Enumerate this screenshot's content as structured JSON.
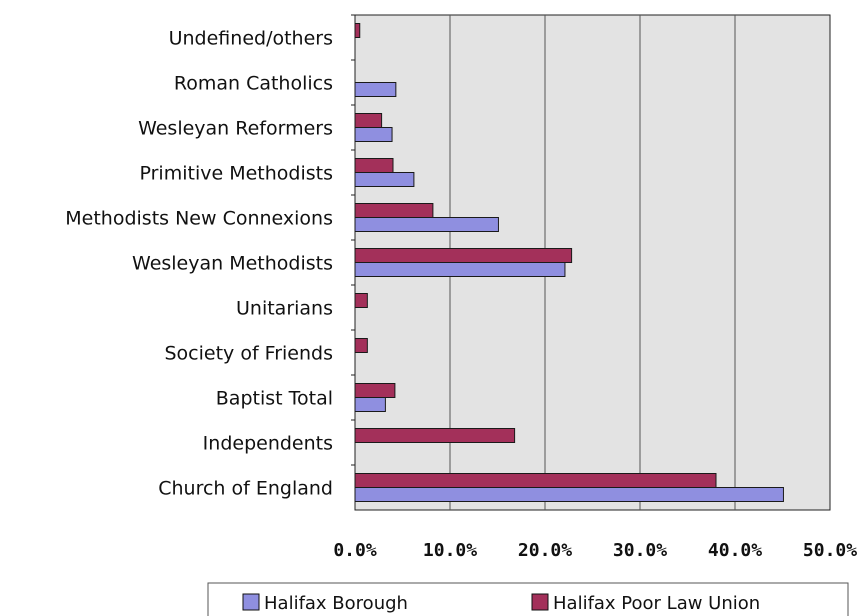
{
  "chart_data": {
    "type": "bar",
    "orientation": "horizontal",
    "categories": [
      "Undefined/others",
      "Roman Catholics",
      "Wesleyan Reformers",
      "Primitive Methodists",
      "Methodists New Connexions",
      "Wesleyan Methodists",
      "Unitarians",
      "Society of Friends",
      "Baptist Total",
      "Independents",
      "Church of England"
    ],
    "series": [
      {
        "name": "Halifax Borough",
        "color": "#8F8FE0",
        "values": [
          0,
          4.3,
          3.9,
          6.2,
          15.1,
          22.1,
          0,
          0,
          3.2,
          0,
          45.1
        ]
      },
      {
        "name": "Halifax Poor Law Union",
        "color": "#A3305A",
        "values": [
          0.5,
          0,
          2.8,
          4.0,
          8.2,
          22.8,
          1.3,
          1.3,
          4.2,
          16.8,
          38.0
        ]
      }
    ],
    "xlim": [
      0,
      50
    ],
    "xticks": [
      "0.0%",
      "10.0%",
      "20.0%",
      "30.0%",
      "40.0%",
      "50.0%"
    ],
    "grid": "vertical",
    "plot_background": "#E3E3E3",
    "legend_position": "bottom"
  }
}
